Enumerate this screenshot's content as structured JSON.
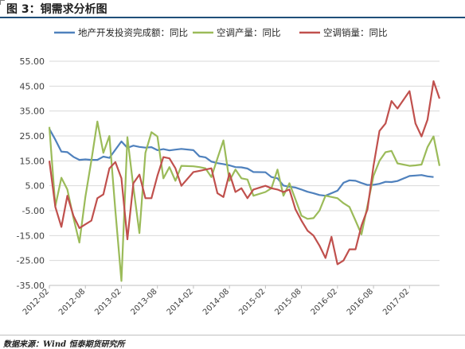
{
  "header": {
    "title": "图 3：铜需求分析图"
  },
  "footer": {
    "source": "数据来源：Wind 恒泰期货研究所"
  },
  "chart_data": {
    "type": "line",
    "title": "",
    "xlabel": "",
    "ylabel": "",
    "ylim": [
      -35,
      55
    ],
    "yticks": [
      "55.00",
      "45.00",
      "35.00",
      "25.00",
      "15.00",
      "5.00",
      "-5.00",
      "-15.00",
      "-25.00",
      "-35.00"
    ],
    "xtick_labels": [
      "2012-02",
      "2012-08",
      "2013-02",
      "2013-08",
      "2014-02",
      "2014-08",
      "2015-02",
      "2015-08",
      "2016-02",
      "2016-08",
      "2017-02"
    ],
    "x_start": "2012-02",
    "x_end": "2017-07",
    "legend_position": "top",
    "grid": "horizontal",
    "series": [
      {
        "name": "地产开发投资完成额：同比",
        "color": "#4f81bd",
        "points": [
          [
            "2012-02",
            27.8
          ],
          [
            "2012-03",
            23.5
          ],
          [
            "2012-04",
            18.7
          ],
          [
            "2012-05",
            18.5
          ],
          [
            "2012-06",
            16.6
          ],
          [
            "2012-07",
            15.4
          ],
          [
            "2012-08",
            15.6
          ],
          [
            "2012-09",
            15.4
          ],
          [
            "2012-10",
            15.4
          ],
          [
            "2012-11",
            16.7
          ],
          [
            "2012-12",
            16.2
          ],
          [
            "2013-02",
            22.8
          ],
          [
            "2013-03",
            20.2
          ],
          [
            "2013-04",
            21.1
          ],
          [
            "2013-05",
            20.6
          ],
          [
            "2013-06",
            20.3
          ],
          [
            "2013-07",
            20.5
          ],
          [
            "2013-08",
            19.3
          ],
          [
            "2013-09",
            19.7
          ],
          [
            "2013-10",
            19.2
          ],
          [
            "2013-11",
            19.5
          ],
          [
            "2013-12",
            19.8
          ],
          [
            "2014-02",
            19.3
          ],
          [
            "2014-03",
            16.8
          ],
          [
            "2014-04",
            16.4
          ],
          [
            "2014-05",
            14.7
          ],
          [
            "2014-06",
            14.1
          ],
          [
            "2014-07",
            13.7
          ],
          [
            "2014-08",
            13.2
          ],
          [
            "2014-09",
            12.5
          ],
          [
            "2014-10",
            12.4
          ],
          [
            "2014-11",
            11.9
          ],
          [
            "2014-12",
            10.5
          ],
          [
            "2015-02",
            10.4
          ],
          [
            "2015-03",
            8.5
          ],
          [
            "2015-04",
            8.0
          ],
          [
            "2015-05",
            5.1
          ],
          [
            "2015-06",
            4.6
          ],
          [
            "2015-07",
            4.3
          ],
          [
            "2015-08",
            3.5
          ],
          [
            "2015-09",
            2.6
          ],
          [
            "2015-10",
            2.0
          ],
          [
            "2015-11",
            1.3
          ],
          [
            "2015-12",
            1.0
          ],
          [
            "2016-02",
            3.0
          ],
          [
            "2016-03",
            6.2
          ],
          [
            "2016-04",
            7.2
          ],
          [
            "2016-05",
            7.0
          ],
          [
            "2016-06",
            6.1
          ],
          [
            "2016-07",
            5.3
          ],
          [
            "2016-08",
            5.4
          ],
          [
            "2016-09",
            5.8
          ],
          [
            "2016-10",
            6.6
          ],
          [
            "2016-11",
            6.5
          ],
          [
            "2016-12",
            6.9
          ],
          [
            "2017-02",
            8.9
          ],
          [
            "2017-03",
            9.1
          ],
          [
            "2017-04",
            9.3
          ],
          [
            "2017-05",
            8.8
          ],
          [
            "2017-06",
            8.5
          ]
        ]
      },
      {
        "name": "空调产量：同比",
        "color": "#9bbb59",
        "points": [
          [
            "2012-02",
            28.6
          ],
          [
            "2012-03",
            -3.2
          ],
          [
            "2012-04",
            8.2
          ],
          [
            "2012-05",
            3.5
          ],
          [
            "2012-06",
            -7.8
          ],
          [
            "2012-07",
            -17.8
          ],
          [
            "2012-08",
            0.5
          ],
          [
            "2012-09",
            15.2
          ],
          [
            "2012-10",
            30.8
          ],
          [
            "2012-11",
            18.2
          ],
          [
            "2012-12",
            25.0
          ],
          [
            "2013-01",
            -5.0
          ],
          [
            "2013-02",
            -33.2
          ],
          [
            "2013-03",
            24.5
          ],
          [
            "2013-04",
            4.5
          ],
          [
            "2013-05",
            -14.0
          ],
          [
            "2013-06",
            18.2
          ],
          [
            "2013-07",
            26.5
          ],
          [
            "2013-08",
            24.8
          ],
          [
            "2013-09",
            8.0
          ],
          [
            "2013-10",
            12.5
          ],
          [
            "2013-11",
            7.0
          ],
          [
            "2013-12",
            13.0
          ],
          [
            "2014-02",
            12.8
          ],
          [
            "2014-03",
            12.5
          ],
          [
            "2014-04",
            12.0
          ],
          [
            "2014-05",
            8.5
          ],
          [
            "2014-06",
            16.0
          ],
          [
            "2014-07",
            23.2
          ],
          [
            "2014-08",
            7.0
          ],
          [
            "2014-09",
            11.5
          ],
          [
            "2014-10",
            8.0
          ],
          [
            "2014-11",
            7.5
          ],
          [
            "2014-12",
            1.0
          ],
          [
            "2015-02",
            2.5
          ],
          [
            "2015-03",
            4.0
          ],
          [
            "2015-04",
            11.5
          ],
          [
            "2015-05",
            1.0
          ],
          [
            "2015-06",
            6.0
          ],
          [
            "2015-07",
            -0.5
          ],
          [
            "2015-08",
            -7.0
          ],
          [
            "2015-09",
            -8.3
          ],
          [
            "2015-10",
            -8.0
          ],
          [
            "2015-11",
            -5.0
          ],
          [
            "2015-12",
            1.0
          ],
          [
            "2016-02",
            0.0
          ],
          [
            "2016-03",
            -2.0
          ],
          [
            "2016-04",
            -3.5
          ],
          [
            "2016-05",
            -9.0
          ],
          [
            "2016-06",
            -14.5
          ],
          [
            "2016-07",
            -3.0
          ],
          [
            "2016-08",
            9.0
          ],
          [
            "2016-09",
            15.0
          ],
          [
            "2016-10",
            18.5
          ],
          [
            "2016-11",
            19.0
          ],
          [
            "2016-12",
            14.0
          ],
          [
            "2017-02",
            13.0
          ],
          [
            "2017-03",
            13.2
          ],
          [
            "2017-04",
            13.5
          ],
          [
            "2017-05",
            20.5
          ],
          [
            "2017-06",
            24.8
          ],
          [
            "2017-07",
            13.0
          ]
        ]
      },
      {
        "name": "空调销量：同比",
        "color": "#c0504d",
        "points": [
          [
            "2012-02",
            15.0
          ],
          [
            "2012-03",
            -3.5
          ],
          [
            "2012-04",
            -11.5
          ],
          [
            "2012-05",
            1.0
          ],
          [
            "2012-06",
            -7.0
          ],
          [
            "2012-07",
            -12.0
          ],
          [
            "2012-08",
            -10.5
          ],
          [
            "2012-09",
            -9.0
          ],
          [
            "2012-10",
            0.0
          ],
          [
            "2012-11",
            1.5
          ],
          [
            "2012-12",
            12.0
          ],
          [
            "2013-01",
            14.5
          ],
          [
            "2013-02",
            8.0
          ],
          [
            "2013-03",
            -16.5
          ],
          [
            "2013-04",
            6.0
          ],
          [
            "2013-05",
            9.5
          ],
          [
            "2013-06",
            0.0
          ],
          [
            "2013-07",
            0.0
          ],
          [
            "2013-08",
            9.0
          ],
          [
            "2013-09",
            16.5
          ],
          [
            "2013-10",
            16.0
          ],
          [
            "2013-11",
            12.0
          ],
          [
            "2013-12",
            5.0
          ],
          [
            "2014-02",
            10.5
          ],
          [
            "2014-03",
            11.0
          ],
          [
            "2014-04",
            11.5
          ],
          [
            "2014-05",
            12.0
          ],
          [
            "2014-06",
            2.0
          ],
          [
            "2014-07",
            0.5
          ],
          [
            "2014-08",
            10.0
          ],
          [
            "2014-09",
            2.5
          ],
          [
            "2014-10",
            4.0
          ],
          [
            "2014-11",
            0.0
          ],
          [
            "2014-12",
            3.5
          ],
          [
            "2015-02",
            5.0
          ],
          [
            "2015-03",
            4.0
          ],
          [
            "2015-04",
            3.5
          ],
          [
            "2015-05",
            2.5
          ],
          [
            "2015-06",
            3.5
          ],
          [
            "2015-07",
            -4.5
          ],
          [
            "2015-08",
            -9.0
          ],
          [
            "2015-09",
            -13.0
          ],
          [
            "2015-10",
            -15.0
          ],
          [
            "2015-11",
            -19.0
          ],
          [
            "2015-12",
            -24.0
          ],
          [
            "2016-01",
            -15.5
          ],
          [
            "2016-02",
            -26.5
          ],
          [
            "2016-03",
            -25.0
          ],
          [
            "2016-04",
            -20.5
          ],
          [
            "2016-05",
            -20.5
          ],
          [
            "2016-06",
            -11.0
          ],
          [
            "2016-07",
            -4.5
          ],
          [
            "2016-08",
            13.0
          ],
          [
            "2016-09",
            27.0
          ],
          [
            "2016-10",
            30.0
          ],
          [
            "2016-11",
            39.0
          ],
          [
            "2016-12",
            36.0
          ],
          [
            "2017-02",
            43.0
          ],
          [
            "2017-03",
            30.0
          ],
          [
            "2017-04",
            24.8
          ],
          [
            "2017-05",
            31.5
          ],
          [
            "2017-06",
            47.0
          ],
          [
            "2017-07",
            40.0
          ]
        ]
      }
    ]
  }
}
